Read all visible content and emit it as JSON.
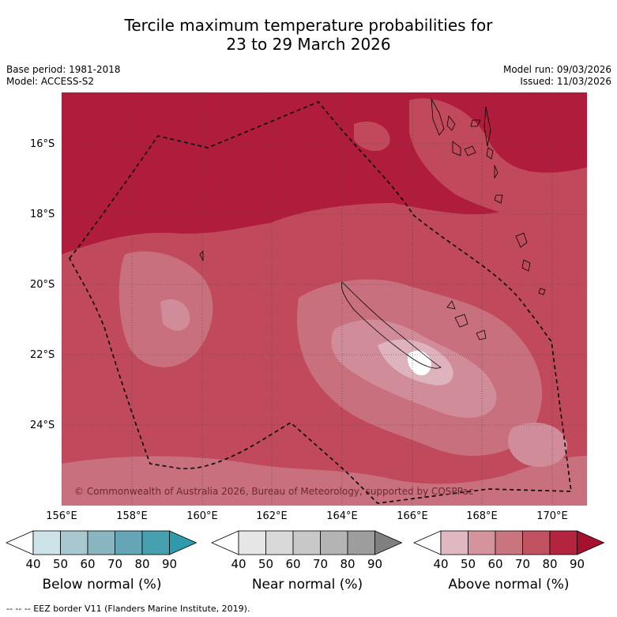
{
  "title": {
    "line1": "Tercile maximum temperature probabilities for",
    "line2": "23 to 29 March 2026"
  },
  "meta": {
    "base_period": "Base period: 1981-2018",
    "model": "Model: ACCESS-S2",
    "model_run": "Model run: 09/03/2026",
    "issued": "Issued: 11/03/2026"
  },
  "map": {
    "lat_labels": [
      "16°S",
      "18°S",
      "20°S",
      "22°S",
      "24°S"
    ],
    "lon_labels": [
      "156°E",
      "158°E",
      "160°E",
      "162°E",
      "164°E",
      "166°E",
      "168°E",
      "170°E"
    ],
    "copyright": "© Commonwealth of Australia 2026, Bureau of Meteorology, supported by COSPPac"
  },
  "colorbars": {
    "ticks": [
      "40",
      "50",
      "60",
      "70",
      "80",
      "90"
    ],
    "below": {
      "label": "Below normal (%)",
      "colors": [
        "#ffffff",
        "#cde3e8",
        "#a7c8cf",
        "#89b5c0",
        "#65a5b5",
        "#46a0b0",
        "#2e9aab"
      ]
    },
    "near": {
      "label": "Near normal (%)",
      "colors": [
        "#ffffff",
        "#e6e6e6",
        "#d9d9d9",
        "#c8c8c8",
        "#b4b4b4",
        "#9d9d9d",
        "#808080"
      ]
    },
    "above": {
      "label": "Above normal (%)",
      "colors": [
        "#ffffff",
        "#dfb8c0",
        "#d4939d",
        "#c97580",
        "#c05262",
        "#b4243f",
        "#a5102e"
      ]
    }
  },
  "footnote": "--  --  -- EEZ border V11 (Flanders Marine Institute, 2019)."
}
